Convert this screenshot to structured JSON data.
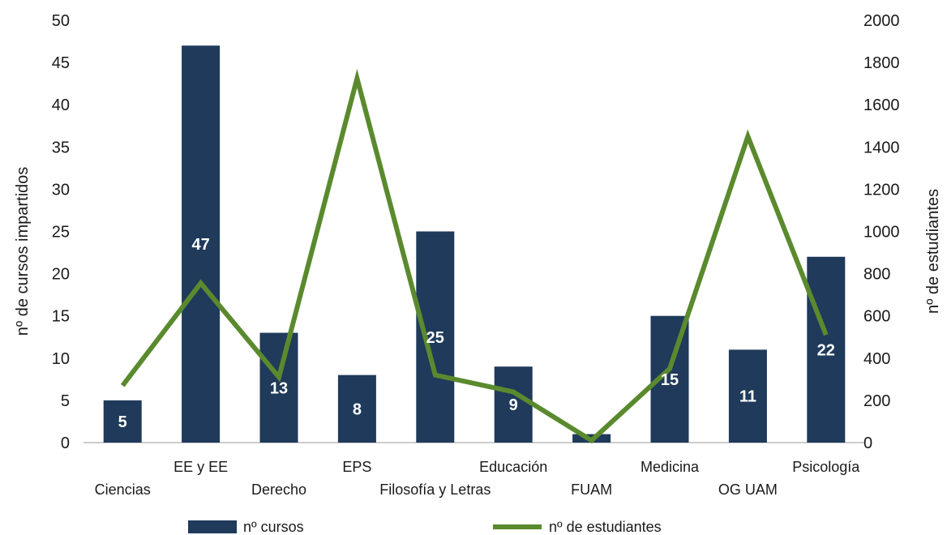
{
  "chart_data": {
    "type": "bar",
    "categories": [
      "Ciencias",
      "EE y EE",
      "Derecho",
      "EPS",
      "Filosofía y Letras",
      "Educación",
      "FUAM",
      "Medicina",
      "OG UAM",
      "Psicología"
    ],
    "series": [
      {
        "name": "nº cursos",
        "type": "bar",
        "axis": "left",
        "values": [
          5,
          47,
          13,
          8,
          25,
          9,
          1,
          15,
          11,
          22
        ],
        "data_labels": [
          "5",
          "47",
          "13",
          "8",
          "25",
          "9",
          "",
          "15",
          "11",
          "22"
        ],
        "color": "#1f3a5a"
      },
      {
        "name": "nº de estudiantes",
        "type": "line",
        "axis": "right",
        "values": [
          270,
          755,
          310,
          1725,
          320,
          240,
          10,
          350,
          1450,
          510
        ],
        "color": "#5a8a2e"
      }
    ],
    "ylabel": "nº de cursos impartidos",
    "y2label": "nº de estudiantes",
    "ylim": [
      0,
      50
    ],
    "y2lim": [
      0,
      2000
    ],
    "yticks": [
      "0",
      "5",
      "10",
      "15",
      "20",
      "25",
      "30",
      "35",
      "40",
      "45",
      "50"
    ],
    "y2ticks": [
      "0",
      "200",
      "400",
      "600",
      "800",
      "1000",
      "1200",
      "1400",
      "1600",
      "1800",
      "2000"
    ],
    "legend": {
      "position": "bottom",
      "items": [
        {
          "label": "nº cursos",
          "color": "#1f3a5a"
        },
        {
          "label": "nº de estudiantes",
          "color": "#5a8a2e"
        }
      ]
    },
    "grid": false
  }
}
